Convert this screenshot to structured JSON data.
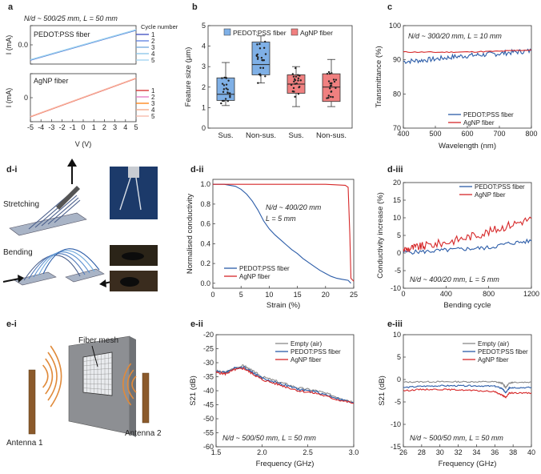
{
  "panels": {
    "a": {
      "label": "a",
      "annotation": "N/d ~ 500/25 mm, L = 50 mm",
      "top": {
        "title": "PEDOT:PSS fiber",
        "ylabel": "I (mA)",
        "xlim": [
          -5,
          5
        ],
        "ylim": [
          -0.5,
          0.5
        ],
        "yticks": [
          "0.0"
        ],
        "legend_title": "Cycle number",
        "legend": [
          "1",
          "2",
          "3",
          "4",
          "5"
        ],
        "colors": [
          "#3b4cc0",
          "#5a7ee0",
          "#6fa8dc",
          "#87c3e8",
          "#9fd3f0"
        ],
        "line": {
          "x": [
            -5,
            5
          ],
          "y": [
            -0.4,
            0.38
          ]
        }
      },
      "bottom": {
        "title": "AgNP fiber",
        "ylabel": "I (mA)",
        "xlabel": "V (V)",
        "xlim": [
          -5,
          5
        ],
        "ylim": [
          -10,
          10
        ],
        "xticks": [
          "-5",
          "-4",
          "-3",
          "-2",
          "-1",
          "0",
          "1",
          "2",
          "3",
          "4",
          "5"
        ],
        "yticks": [
          "0"
        ],
        "legend": [
          "1",
          "2",
          "3",
          "4",
          "5"
        ],
        "colors": [
          "#d62728",
          "#e377c2",
          "#ff7f0e",
          "#f4a582",
          "#f7b6a8"
        ],
        "line": {
          "x": [
            -5,
            5
          ],
          "y": [
            -8,
            8
          ]
        }
      }
    },
    "b": {
      "label": "b",
      "ylabel": "Feature size (μm)",
      "ylim": [
        0,
        5
      ],
      "yticks": [
        "0",
        "1",
        "2",
        "3",
        "4",
        "5"
      ],
      "legend": [
        {
          "name": "PEDOT:PSS fiber",
          "color": "#7fb0e6"
        },
        {
          "name": "AgNP fiber",
          "color": "#f08080"
        }
      ],
      "chart_data": {
        "type": "box",
        "categories": [
          "Sus.",
          "Non-sus.",
          "Sus.",
          "Non-sus."
        ],
        "groups": [
          "PEDOT:PSS fiber",
          "PEDOT:PSS fiber",
          "AgNP fiber",
          "AgNP fiber"
        ],
        "boxes": [
          {
            "min": 1.1,
            "q1": 1.35,
            "median": 1.65,
            "q3": 2.45,
            "max": 3.2
          },
          {
            "min": 2.2,
            "q1": 2.6,
            "median": 3.1,
            "q3": 4.2,
            "max": 4.5
          },
          {
            "min": 1.05,
            "q1": 1.7,
            "median": 2.15,
            "q3": 2.6,
            "max": 3.0
          },
          {
            "min": 1.05,
            "q1": 1.3,
            "median": 2.0,
            "q3": 2.65,
            "max": 3.35
          }
        ]
      }
    },
    "c": {
      "label": "c",
      "annotation": "N/d ~ 300/20 mm, L = 10 mm",
      "ylabel": "Transmittance (%)",
      "xlabel": "Wavelength (nm)",
      "xticks": [
        "400",
        "500",
        "600",
        "700",
        "800"
      ],
      "yticks": [
        "70",
        "80",
        "90",
        "100"
      ],
      "legend": [
        "PEDOT:PSS fiber",
        "AgNP fiber"
      ],
      "colors": [
        "#2b5ca8",
        "#d62728"
      ],
      "chart_data": {
        "type": "line",
        "xlim": [
          400,
          800
        ],
        "ylim": [
          70,
          100
        ],
        "series": [
          {
            "name": "PEDOT:PSS fiber",
            "x": [
              400,
              450,
              500,
              550,
              600,
              650,
              700,
              750,
              800
            ],
            "y": [
              89.5,
              89.8,
              90.2,
              90.8,
              91.2,
              91.5,
              91.8,
              92.3,
              92.6
            ]
          },
          {
            "name": "AgNP fiber",
            "x": [
              400,
              500,
              600,
              700,
              800
            ],
            "y": [
              92.3,
              92.2,
              92.3,
              92.5,
              92.9
            ]
          }
        ]
      }
    },
    "di": {
      "label": "d-i",
      "stretching": "Stretching",
      "bending": "Bending"
    },
    "dii": {
      "label": "d-ii",
      "annotation_line1": "N/d ~ 400/20 mm",
      "annotation_line2": "L = 5 mm",
      "ylabel": "Normalised conductivity",
      "xlabel": "Strain (%)",
      "xticks": [
        "0",
        "5",
        "10",
        "15",
        "20",
        "25"
      ],
      "yticks": [
        "0.0",
        "0.2",
        "0.4",
        "0.6",
        "0.8",
        "1.0"
      ],
      "legend": [
        "PEDOT:PSS fiber",
        "AgNP fiber"
      ],
      "colors": [
        "#2b5ca8",
        "#d62728"
      ],
      "chart_data": {
        "type": "line",
        "xlim": [
          0,
          25
        ],
        "ylim": [
          -0.05,
          1.05
        ],
        "series": [
          {
            "name": "PEDOT:PSS fiber",
            "x": [
              0,
              2,
              4,
              5,
              6,
              7,
              8,
              9,
              10,
              11,
              12,
              13,
              14,
              15,
              16,
              17,
              18,
              19,
              20,
              21,
              22,
              23,
              24,
              24.5
            ],
            "y": [
              1.0,
              1.0,
              0.98,
              0.95,
              0.9,
              0.83,
              0.74,
              0.63,
              0.55,
              0.49,
              0.44,
              0.39,
              0.34,
              0.3,
              0.25,
              0.21,
              0.17,
              0.13,
              0.1,
              0.07,
              0.05,
              0.04,
              0.03,
              0.0
            ]
          },
          {
            "name": "AgNP fiber",
            "x": [
              0,
              5,
              10,
              15,
              20,
              23.5,
              24,
              24.3,
              24.5,
              25
            ],
            "y": [
              1.0,
              1.0,
              1.0,
              1.0,
              1.0,
              0.99,
              0.97,
              0.5,
              0.05,
              0.02
            ]
          }
        ]
      }
    },
    "diii": {
      "label": "d-iii",
      "annotation": "N/d ~ 400/20 mm, L = 5 mm",
      "ylabel": "Conductivity increase (%)",
      "xlabel": "Bending cycle",
      "xticks": [
        "0",
        "400",
        "800",
        "1200"
      ],
      "yticks": [
        "-10",
        "-5",
        "0",
        "5",
        "10",
        "15",
        "20"
      ],
      "legend": [
        "PEDOT:PSS fiber",
        "AgNP fiber"
      ],
      "colors": [
        "#2b5ca8",
        "#d62728"
      ],
      "chart_data": {
        "type": "line",
        "xlim": [
          0,
          1200
        ],
        "ylim": [
          -10,
          20
        ],
        "series": [
          {
            "name": "PEDOT:PSS fiber",
            "x": [
              0,
              200,
              400,
              600,
              800,
              1000,
              1200
            ],
            "y": [
              0.2,
              0.4,
              0.8,
              1.2,
              1.5,
              2.8,
              3.4
            ]
          },
          {
            "name": "AgNP fiber",
            "x": [
              0,
              100,
              200,
              400,
              600,
              800,
              1000,
              1200
            ],
            "y": [
              1.0,
              1.5,
              2.0,
              3.0,
              4.5,
              6.0,
              8.0,
              9.8
            ]
          }
        ]
      }
    },
    "ei": {
      "label": "e-i",
      "mesh": "Fiber mesh",
      "antenna1": "Antenna 1",
      "antenna2": "Antenna 2"
    },
    "eii": {
      "label": "e-ii",
      "annotation": "N/d ~ 500/50 mm, L = 50 mm",
      "ylabel": "S21 (dB)",
      "xlabel": "Frequency (GHz)",
      "xticks": [
        "1.5",
        "2.0",
        "2.5",
        "3.0"
      ],
      "yticks": [
        "-60",
        "-55",
        "-50",
        "-45",
        "-40",
        "-35",
        "-30",
        "-25",
        "-20"
      ],
      "legend": [
        "Empty (air)",
        "PEDOT:PSS fiber",
        "AgNP fiber"
      ],
      "colors": [
        "#8a8a8a",
        "#2b5ca8",
        "#d62728"
      ],
      "chart_data": {
        "type": "line",
        "xlim": [
          1.5,
          3.0
        ],
        "ylim": [
          -60,
          -20
        ],
        "series": [
          {
            "name": "Empty (air)",
            "x": [
              1.5,
              1.6,
              1.7,
              1.8,
              1.9,
              2.0,
              2.2,
              2.4,
              2.6,
              2.8,
              3.0
            ],
            "y": [
              -33,
              -33.5,
              -32,
              -31,
              -33,
              -35,
              -37,
              -39,
              -40,
              -42,
              -44
            ]
          },
          {
            "name": "PEDOT:PSS fiber",
            "x": [
              1.5,
              1.6,
              1.7,
              1.8,
              1.9,
              2.0,
              2.2,
              2.4,
              2.6,
              2.8,
              3.0
            ],
            "y": [
              -33,
              -33.5,
              -32,
              -31.5,
              -33.5,
              -35.5,
              -37.5,
              -39.5,
              -40.5,
              -42.5,
              -44.5
            ]
          },
          {
            "name": "AgNP fiber",
            "x": [
              1.5,
              1.6,
              1.7,
              1.8,
              1.9,
              2.0,
              2.2,
              2.4,
              2.6,
              2.8,
              3.0
            ],
            "y": [
              -33.5,
              -34,
              -32.5,
              -32,
              -34,
              -36,
              -38,
              -40,
              -41,
              -43,
              -44.5
            ]
          }
        ]
      }
    },
    "eiii": {
      "label": "e-iii",
      "annotation": "N/d ~ 500/50 mm, L = 50 mm",
      "ylabel": "S21 (dB)",
      "xlabel": "Frequency (GHz)",
      "xticks": [
        "26",
        "28",
        "30",
        "32",
        "34",
        "36",
        "38",
        "40"
      ],
      "yticks": [
        "-15",
        "-10",
        "-5",
        "0",
        "5",
        "10"
      ],
      "legend": [
        "Empty (air)",
        "PEDOT:PSS fiber",
        "AgNP fiber"
      ],
      "colors": [
        "#8a8a8a",
        "#2b5ca8",
        "#d62728"
      ],
      "chart_data": {
        "type": "line",
        "xlim": [
          26,
          40
        ],
        "ylim": [
          -15,
          10
        ],
        "series": [
          {
            "name": "Empty (air)",
            "x": [
              26,
              28,
              30,
              32,
              34,
              36,
              36.8,
              37.2,
              37.6,
              38,
              40
            ],
            "y": [
              -0.6,
              -0.5,
              -0.5,
              -0.5,
              -0.5,
              -0.5,
              -0.8,
              -1.8,
              -0.8,
              -0.6,
              -0.6
            ]
          },
          {
            "name": "PEDOT:PSS fiber",
            "x": [
              26,
              28,
              30,
              32,
              34,
              36,
              36.8,
              37.2,
              37.6,
              38,
              40
            ],
            "y": [
              -1.8,
              -1.5,
              -1.4,
              -1.4,
              -1.4,
              -1.5,
              -2.0,
              -3.0,
              -1.8,
              -1.8,
              -1.8
            ]
          },
          {
            "name": "AgNP fiber",
            "x": [
              26,
              28,
              30,
              32,
              34,
              36,
              36.8,
              37.2,
              37.6,
              38,
              40
            ],
            "y": [
              -2.5,
              -2.2,
              -2.2,
              -2.3,
              -2.5,
              -2.7,
              -3.5,
              -4.0,
              -3.0,
              -3.0,
              -3.0
            ]
          }
        ]
      }
    }
  }
}
